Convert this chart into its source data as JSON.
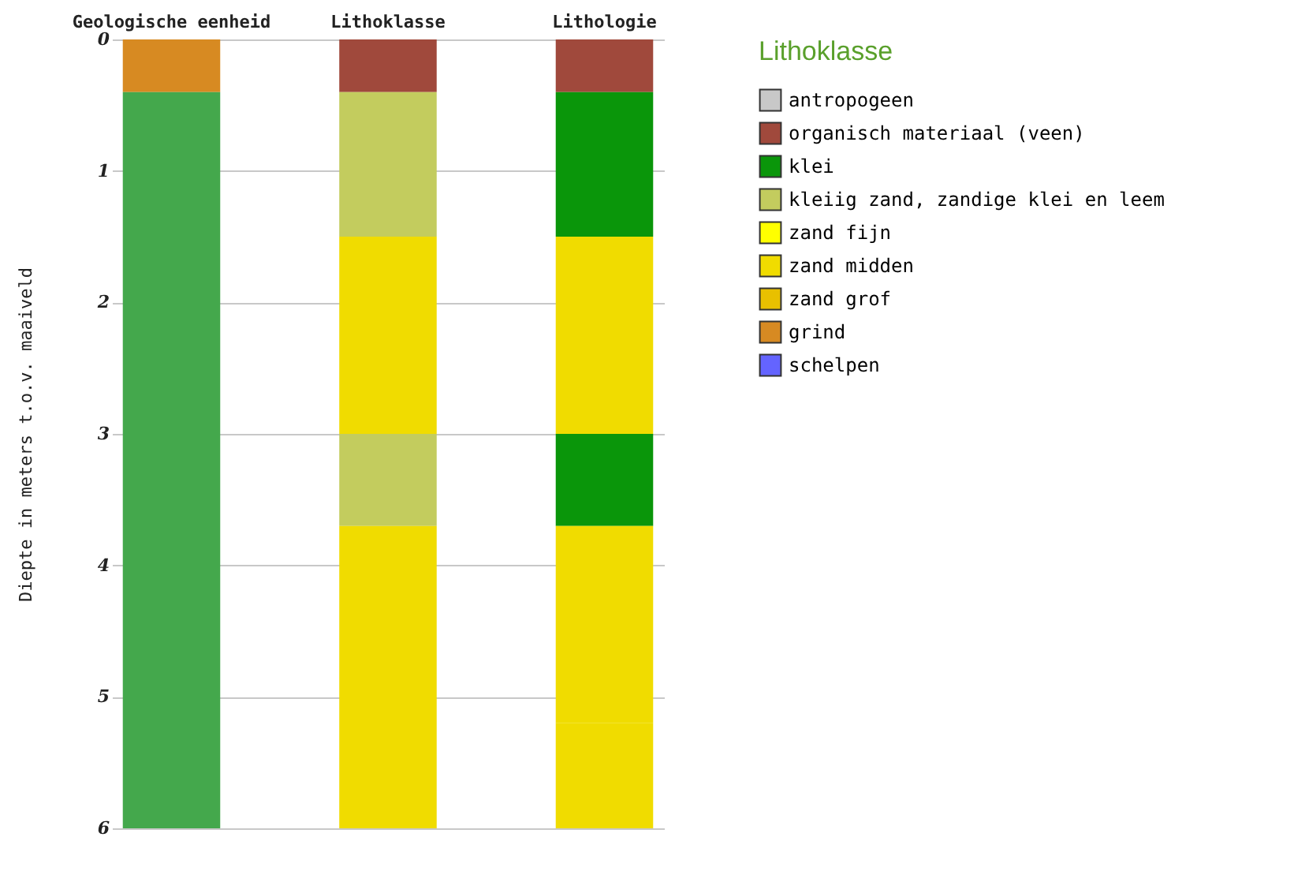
{
  "chart_data": {
    "type": "bar",
    "categories": [
      "Geologische eenheid",
      "Lithoklasse",
      "Lithologie"
    ],
    "ylabel": "Diepte in meters t.o.v. maaiveld",
    "legend_title": "Lithoklasse",
    "ylim": [
      6,
      0
    ],
    "yticks": [
      0,
      1,
      2,
      3,
      4,
      5,
      6
    ],
    "grid": "y",
    "legend": "top right",
    "series": [
      {
        "name": "antropogeen",
        "color": "#c8c8c8",
        "values": [
          null,
          null,
          null
        ],
        "base": [
          null,
          null,
          null
        ]
      },
      {
        "name": "organisch materiaal (veen)",
        "color": "#a0493c",
        "values": [
          null,
          0.4,
          0.4
        ],
        "base": [
          null,
          0,
          0
        ]
      },
      {
        "name": "klei",
        "color": "#0a960a",
        "values": [
          null,
          null,
          1.1
        ],
        "base": [
          null,
          null,
          0.4
        ]
      },
      {
        "name": "kleiig zand, zandige klei en leem",
        "color": "#c3cc5e",
        "values": [
          null,
          1.1,
          null
        ],
        "base": [
          null,
          0.4,
          null
        ]
      },
      {
        "name": "zand fijn",
        "color": "#ffff00",
        "values": [
          null,
          null,
          null
        ],
        "base": [
          null,
          null,
          null
        ]
      },
      {
        "name": "zand midden",
        "color": "#f0dc00",
        "values": [
          null,
          1.5,
          1.5
        ],
        "base": [
          null,
          1.5,
          1.5
        ]
      },
      {
        "name": "zand grof",
        "color": "#e8c000",
        "values": [
          null,
          null,
          null
        ],
        "base": [
          null,
          null,
          null
        ]
      },
      {
        "name": "grind",
        "color": "#d78a22",
        "values": [
          0.4,
          null,
          null
        ],
        "base": [
          0,
          null,
          null
        ]
      },
      {
        "name": "schelpen",
        "color": "#6464ff",
        "values": [
          null,
          null,
          null
        ],
        "base": [
          null,
          null,
          null
        ]
      },
      {
        "color": "#44a84c",
        "values": [
          5.6,
          null,
          null
        ],
        "base": [
          0.4,
          null,
          null
        ]
      },
      {
        "color": "#c3cc5e",
        "values": [
          null,
          0.7,
          null
        ],
        "base": [
          null,
          3,
          null
        ]
      },
      {
        "color": "#0a960a",
        "values": [
          null,
          null,
          0.7
        ],
        "base": [
          null,
          null,
          3
        ]
      },
      {
        "color": "#f0dc00",
        "values": [
          null,
          2.3,
          1.5
        ],
        "base": [
          null,
          3.7,
          3.7
        ]
      },
      {
        "color": "#f0dc00",
        "values": [
          null,
          null,
          0.8
        ],
        "base": [
          null,
          null,
          5.2
        ]
      }
    ]
  }
}
